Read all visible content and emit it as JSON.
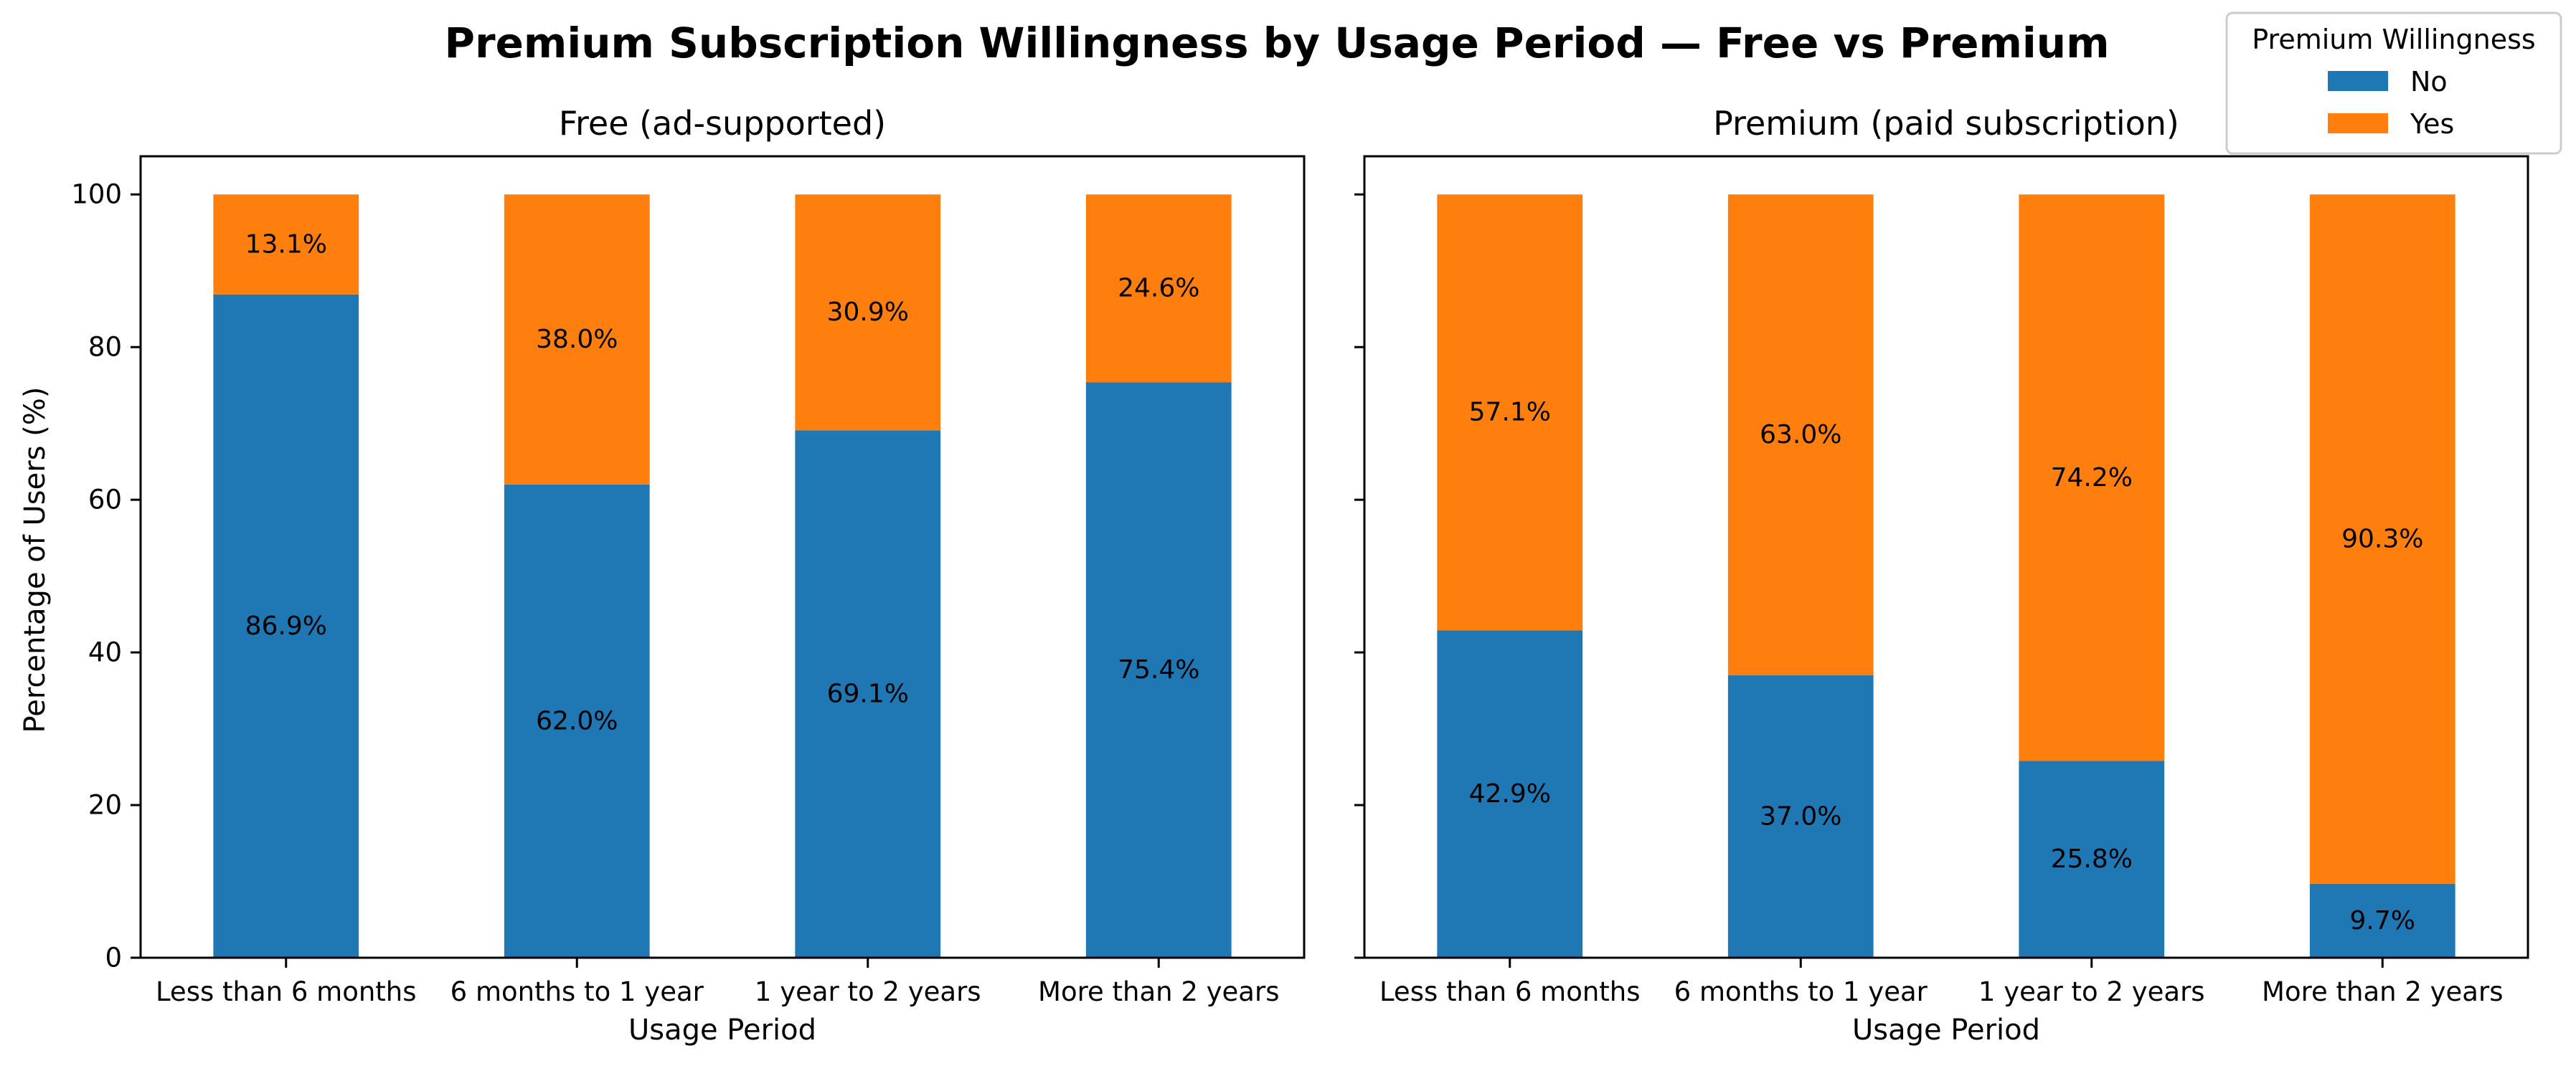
{
  "chart_data": {
    "type": "bar",
    "stacked": true,
    "title": "Premium Subscription Willingness by Usage Period — Free vs Premium",
    "ylabel": "Percentage of Users (%)",
    "ylim": [
      0,
      105
    ],
    "yticks": [
      0,
      20,
      40,
      60,
      80,
      100
    ],
    "grid": false,
    "legend": {
      "title": "Premium Willingness",
      "placement": "top-right",
      "entries": [
        "No",
        "Yes"
      ]
    },
    "colors": {
      "No": "#1f77b4",
      "Yes": "#ff7f0e"
    },
    "panels": [
      {
        "title": "Free (ad-supported)",
        "xlabel": "Usage Period",
        "categories": [
          "Less than 6 months",
          "6 months to 1 year",
          "1 year to 2 years",
          "More than 2 years"
        ],
        "series": [
          {
            "name": "No",
            "values": [
              86.9,
              62.0,
              69.1,
              75.4
            ],
            "labels": [
              "86.9%",
              "62.0%",
              "69.1%",
              "75.4%"
            ]
          },
          {
            "name": "Yes",
            "values": [
              13.1,
              38.0,
              30.9,
              24.6
            ],
            "labels": [
              "13.1%",
              "38.0%",
              "30.9%",
              "24.6%"
            ]
          }
        ]
      },
      {
        "title": "Premium (paid subscription)",
        "xlabel": "Usage Period",
        "categories": [
          "Less than 6 months",
          "6 months to 1 year",
          "1 year to 2 years",
          "More than 2 years"
        ],
        "series": [
          {
            "name": "No",
            "values": [
              42.9,
              37.0,
              25.8,
              9.7
            ],
            "labels": [
              "42.9%",
              "37.0%",
              "25.8%",
              "9.7%"
            ]
          },
          {
            "name": "Yes",
            "values": [
              57.1,
              63.0,
              74.2,
              90.3
            ],
            "labels": [
              "57.1%",
              "63.0%",
              "74.2%",
              "90.3%"
            ]
          }
        ]
      }
    ]
  }
}
